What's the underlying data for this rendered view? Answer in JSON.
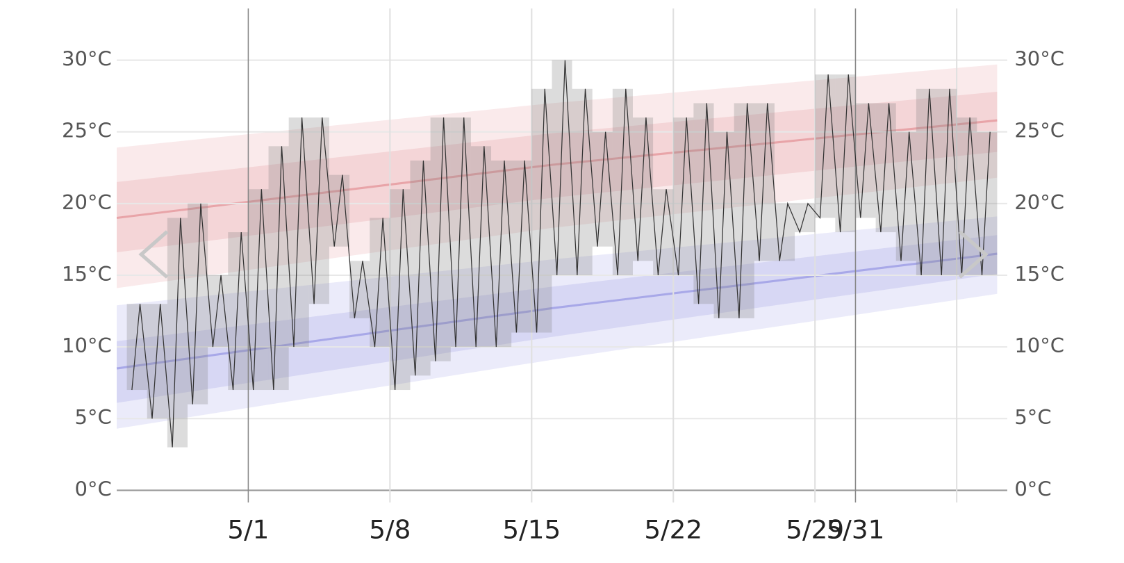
{
  "chart_data": {
    "type": "line",
    "xlim": [
      -5.5,
      38.5
    ],
    "xticks": [
      {
        "value": 1,
        "label": "5/1",
        "emphasis": true
      },
      {
        "value": 8,
        "label": "5/8"
      },
      {
        "value": 15,
        "label": "5/15"
      },
      {
        "value": 22,
        "label": "5/22"
      },
      {
        "value": 29,
        "label": "5/29"
      },
      {
        "value": 31,
        "label": "5/31",
        "emphasis": true
      },
      {
        "value": 36,
        "label": null
      }
    ],
    "ylim": [
      0,
      33.6
    ],
    "yticks": [
      {
        "value": 0,
        "label": "0°C"
      },
      {
        "value": 5,
        "label": "5°C"
      },
      {
        "value": 10,
        "label": "10°C"
      },
      {
        "value": 15,
        "label": "15°C"
      },
      {
        "value": 20,
        "label": "20°C"
      },
      {
        "value": 25,
        "label": "25°C"
      },
      {
        "value": 30,
        "label": "30°C"
      }
    ],
    "grid": true,
    "normals": [
      {
        "color": "#d9686f",
        "x": [
          -5.5,
          16,
          38
        ],
        "mean": [
          19.0,
          22.7,
          25.8
        ],
        "p25": [
          16.6,
          20.4,
          23.6
        ],
        "p75": [
          21.5,
          24.9,
          27.8
        ],
        "p10": [
          14.1,
          18.3,
          21.8
        ],
        "p90": [
          23.9,
          27.0,
          29.7
        ]
      },
      {
        "color": "#6f6fd9",
        "x": [
          -5.5,
          16,
          38
        ],
        "mean": [
          8.5,
          12.7,
          16.5
        ],
        "p25": [
          6.1,
          10.7,
          15.1
        ],
        "p75": [
          10.4,
          14.2,
          17.8
        ],
        "p10": [
          4.3,
          9.1,
          13.7
        ],
        "p90": [
          12.9,
          16.1,
          19.1
        ]
      }
    ],
    "observed": {
      "color": "#333333",
      "range_color": "#808080",
      "days": [
        -5,
        -4,
        -3,
        -2,
        -1,
        0,
        1,
        2,
        3,
        4,
        5,
        6,
        7,
        8,
        9,
        10,
        11,
        12,
        13,
        14,
        15,
        16,
        17,
        18,
        19,
        20,
        21,
        22,
        23,
        24,
        25,
        26,
        27,
        28,
        29,
        30,
        31,
        32,
        33,
        34,
        35,
        36,
        37
      ],
      "min": [
        7,
        5,
        3,
        6,
        10,
        7,
        7,
        7,
        10,
        13,
        17,
        12,
        10,
        7,
        8,
        9,
        10,
        10,
        10,
        11,
        11,
        15,
        15,
        17,
        15,
        16,
        15,
        15,
        13,
        12,
        12,
        16,
        16,
        18,
        19,
        18,
        19,
        18,
        16,
        15,
        15,
        15,
        15
      ],
      "max": [
        13,
        13,
        19,
        20,
        15,
        18,
        21,
        24,
        26,
        26,
        22,
        16,
        19,
        21,
        23,
        26,
        26,
        24,
        23,
        23,
        28,
        30,
        28,
        25,
        28,
        26,
        21,
        26,
        27,
        25,
        27,
        27,
        20,
        20,
        29,
        29,
        27,
        27,
        25,
        28,
        28,
        26,
        25
      ]
    }
  }
}
